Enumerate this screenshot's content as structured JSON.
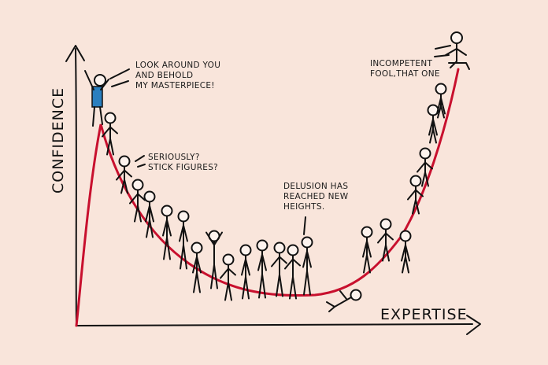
{
  "axes": {
    "y_label": "CONFIDENCE",
    "x_label": "EXPERTISE"
  },
  "colors": {
    "background": "#f9e5db",
    "curve": "#c8102e",
    "ink": "#111111",
    "shirt": "#2a7fbf"
  },
  "captions": {
    "masterpiece": [
      "LOOK AROUND YOU",
      "AND BEHOLD",
      "MY MASTERPIECE!"
    ],
    "stick_figures": [
      "SERIOUSLY?",
      "STICK FIGURES?"
    ],
    "delusion": [
      "DELUSION HAS",
      "REACHED NEW",
      "HEIGHTS."
    ],
    "fool": [
      "INCOMPETENT",
      "FOOL,THAT ONE"
    ]
  }
}
